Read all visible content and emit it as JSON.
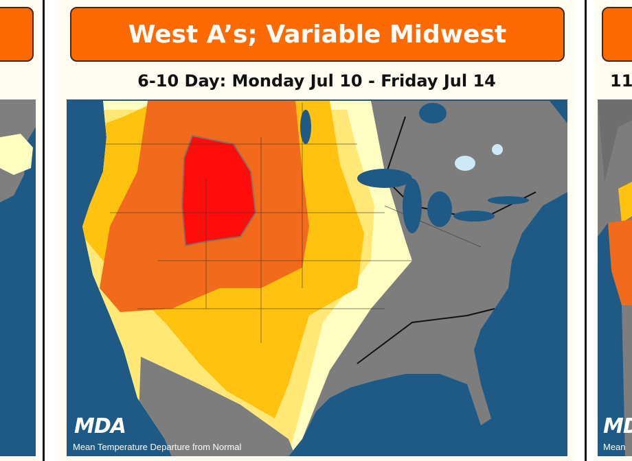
{
  "center_panel": {
    "headline": "West A’s; Variable Midwest",
    "subtitle": "6-10 Day: Monday Jul 10 - Friday Jul 14",
    "logo": "MDA",
    "caption": "Mean Temperature Departure from Normal"
  },
  "right_panel": {
    "subtitle": "11",
    "logo": "MDA",
    "caption": "Mean"
  }
}
